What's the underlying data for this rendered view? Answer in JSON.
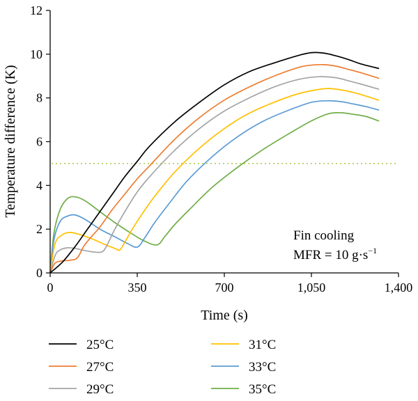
{
  "chart_data": {
    "type": "line",
    "xlabel": "Time (s)",
    "ylabel": "Temperature difference (K)",
    "xlim": [
      0,
      1400
    ],
    "ylim": [
      0,
      12
    ],
    "x_ticks": [
      0,
      350,
      700,
      1050,
      1400
    ],
    "x_tick_labels": [
      "0",
      "350",
      "700",
      "1,050",
      "1,400"
    ],
    "y_ticks": [
      0,
      2,
      4,
      6,
      8,
      10,
      12
    ],
    "y_tick_labels": [
      "0",
      "2",
      "4",
      "6",
      "8",
      "10",
      "12"
    ],
    "annotation": {
      "line1": "Fin cooling",
      "line2_prefix": "MFR = 10 g·s",
      "line2_sup": "−1"
    },
    "reference_line": {
      "y": 5,
      "color": "#a8c84a",
      "style": "dotted"
    },
    "legend_position": "bottom",
    "series": [
      {
        "name": "25°C",
        "color": "#000000",
        "points": [
          [
            0,
            0
          ],
          [
            50,
            0.5
          ],
          [
            100,
            1.2
          ],
          [
            150,
            2.0
          ],
          [
            200,
            2.8
          ],
          [
            250,
            3.6
          ],
          [
            300,
            4.4
          ],
          [
            350,
            5.1
          ],
          [
            400,
            5.8
          ],
          [
            500,
            6.9
          ],
          [
            600,
            7.8
          ],
          [
            700,
            8.6
          ],
          [
            800,
            9.2
          ],
          [
            900,
            9.6
          ],
          [
            1000,
            9.95
          ],
          [
            1050,
            10.07
          ],
          [
            1100,
            10.05
          ],
          [
            1150,
            9.92
          ],
          [
            1200,
            9.75
          ],
          [
            1250,
            9.55
          ],
          [
            1320,
            9.35
          ]
        ]
      },
      {
        "name": "27°C",
        "color": "#ed7d31",
        "points": [
          [
            0,
            0
          ],
          [
            20,
            0.45
          ],
          [
            50,
            0.55
          ],
          [
            80,
            0.58
          ],
          [
            110,
            0.7
          ],
          [
            140,
            1.3
          ],
          [
            200,
            2.1
          ],
          [
            250,
            2.9
          ],
          [
            300,
            3.6
          ],
          [
            350,
            4.3
          ],
          [
            400,
            4.9
          ],
          [
            500,
            6.1
          ],
          [
            600,
            7.1
          ],
          [
            700,
            7.9
          ],
          [
            800,
            8.5
          ],
          [
            900,
            9.0
          ],
          [
            1000,
            9.4
          ],
          [
            1050,
            9.5
          ],
          [
            1100,
            9.52
          ],
          [
            1150,
            9.45
          ],
          [
            1200,
            9.3
          ],
          [
            1250,
            9.15
          ],
          [
            1320,
            8.9
          ]
        ]
      },
      {
        "name": "29°C",
        "color": "#a5a5a5",
        "points": [
          [
            0,
            0
          ],
          [
            20,
            0.8
          ],
          [
            40,
            1.05
          ],
          [
            70,
            1.15
          ],
          [
            100,
            1.12
          ],
          [
            140,
            1.02
          ],
          [
            180,
            0.95
          ],
          [
            210,
            0.97
          ],
          [
            230,
            1.3
          ],
          [
            260,
            2.0
          ],
          [
            300,
            2.8
          ],
          [
            350,
            3.7
          ],
          [
            400,
            4.4
          ],
          [
            500,
            5.6
          ],
          [
            600,
            6.6
          ],
          [
            700,
            7.4
          ],
          [
            800,
            8.0
          ],
          [
            900,
            8.5
          ],
          [
            1000,
            8.85
          ],
          [
            1080,
            8.97
          ],
          [
            1150,
            8.92
          ],
          [
            1200,
            8.78
          ],
          [
            1250,
            8.63
          ],
          [
            1320,
            8.4
          ]
        ]
      },
      {
        "name": "31°C",
        "color": "#ffc000",
        "points": [
          [
            0,
            0
          ],
          [
            20,
            1.35
          ],
          [
            50,
            1.75
          ],
          [
            80,
            1.85
          ],
          [
            120,
            1.75
          ],
          [
            170,
            1.55
          ],
          [
            220,
            1.3
          ],
          [
            260,
            1.12
          ],
          [
            280,
            1.05
          ],
          [
            300,
            1.4
          ],
          [
            330,
            2.0
          ],
          [
            370,
            2.7
          ],
          [
            420,
            3.5
          ],
          [
            500,
            4.6
          ],
          [
            600,
            5.7
          ],
          [
            700,
            6.6
          ],
          [
            800,
            7.3
          ],
          [
            900,
            7.8
          ],
          [
            1000,
            8.2
          ],
          [
            1100,
            8.42
          ],
          [
            1150,
            8.4
          ],
          [
            1200,
            8.3
          ],
          [
            1250,
            8.15
          ],
          [
            1320,
            7.9
          ]
        ]
      },
      {
        "name": "33°C",
        "color": "#5b9bd5",
        "points": [
          [
            0,
            0
          ],
          [
            15,
            1.5
          ],
          [
            40,
            2.35
          ],
          [
            70,
            2.6
          ],
          [
            100,
            2.65
          ],
          [
            140,
            2.45
          ],
          [
            200,
            2.0
          ],
          [
            260,
            1.65
          ],
          [
            310,
            1.35
          ],
          [
            350,
            1.18
          ],
          [
            380,
            1.6
          ],
          [
            420,
            2.3
          ],
          [
            480,
            3.2
          ],
          [
            550,
            4.2
          ],
          [
            650,
            5.3
          ],
          [
            750,
            6.2
          ],
          [
            850,
            6.9
          ],
          [
            950,
            7.4
          ],
          [
            1050,
            7.8
          ],
          [
            1120,
            7.87
          ],
          [
            1170,
            7.83
          ],
          [
            1220,
            7.72
          ],
          [
            1270,
            7.6
          ],
          [
            1320,
            7.45
          ]
        ]
      },
      {
        "name": "35°C",
        "color": "#70ad47",
        "points": [
          [
            0,
            0
          ],
          [
            15,
            1.8
          ],
          [
            40,
            2.9
          ],
          [
            70,
            3.4
          ],
          [
            100,
            3.48
          ],
          [
            140,
            3.3
          ],
          [
            200,
            2.8
          ],
          [
            260,
            2.3
          ],
          [
            320,
            1.85
          ],
          [
            380,
            1.45
          ],
          [
            430,
            1.28
          ],
          [
            460,
            1.65
          ],
          [
            500,
            2.2
          ],
          [
            560,
            2.9
          ],
          [
            650,
            3.9
          ],
          [
            750,
            4.8
          ],
          [
            850,
            5.6
          ],
          [
            950,
            6.3
          ],
          [
            1050,
            6.95
          ],
          [
            1120,
            7.28
          ],
          [
            1170,
            7.32
          ],
          [
            1220,
            7.25
          ],
          [
            1270,
            7.15
          ],
          [
            1320,
            6.95
          ]
        ]
      }
    ]
  }
}
